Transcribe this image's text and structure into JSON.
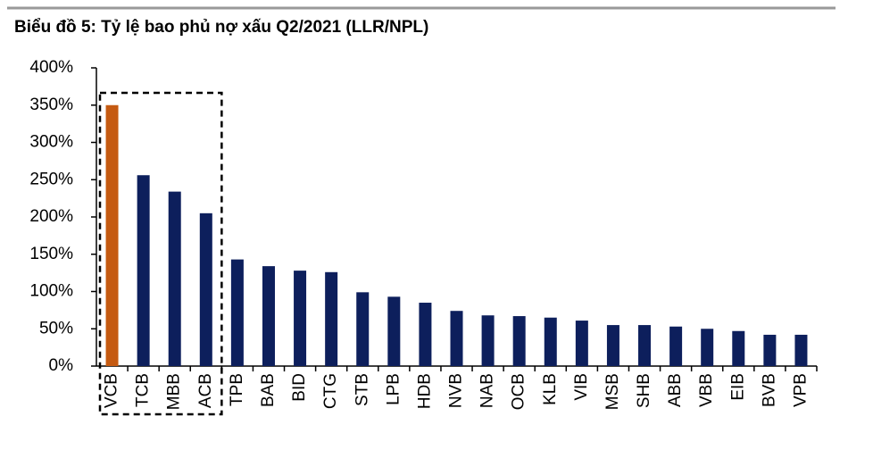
{
  "chart_data": {
    "type": "bar",
    "title": "Biểu đồ 5: Tỷ lệ bao phủ nợ xấu Q2/2021 (LLR/NPL)",
    "categories": [
      "VCB",
      "TCB",
      "MBB",
      "ACB",
      "TPB",
      "BAB",
      "BID",
      "CTG",
      "STB",
      "LPB",
      "HDB",
      "NVB",
      "NAB",
      "OCB",
      "KLB",
      "VIB",
      "MSB",
      "SHB",
      "ABB",
      "VBB",
      "EIB",
      "BVB",
      "VPB"
    ],
    "values": [
      350,
      256,
      234,
      205,
      143,
      134,
      128,
      126,
      99,
      93,
      85,
      74,
      68,
      67,
      65,
      61,
      55,
      55,
      53,
      50,
      47,
      42,
      42
    ],
    "colors": [
      "#c55a11",
      "#0d1f5c",
      "#0d1f5c",
      "#0d1f5c",
      "#0d1f5c",
      "#0d1f5c",
      "#0d1f5c",
      "#0d1f5c",
      "#0d1f5c",
      "#0d1f5c",
      "#0d1f5c",
      "#0d1f5c",
      "#0d1f5c",
      "#0d1f5c",
      "#0d1f5c",
      "#0d1f5c",
      "#0d1f5c",
      "#0d1f5c",
      "#0d1f5c",
      "#0d1f5c",
      "#0d1f5c",
      "#0d1f5c",
      "#0d1f5c"
    ],
    "ylim": [
      0,
      400
    ],
    "yticks": [
      {
        "value": 0,
        "label": "0%"
      },
      {
        "value": 50,
        "label": "50%"
      },
      {
        "value": 100,
        "label": "100%"
      },
      {
        "value": 150,
        "label": "150%"
      },
      {
        "value": 200,
        "label": "200%"
      },
      {
        "value": 250,
        "label": "250%"
      },
      {
        "value": 300,
        "label": "300%"
      },
      {
        "value": 350,
        "label": "350%"
      },
      {
        "value": 400,
        "label": "400%"
      }
    ],
    "grid": false
  }
}
